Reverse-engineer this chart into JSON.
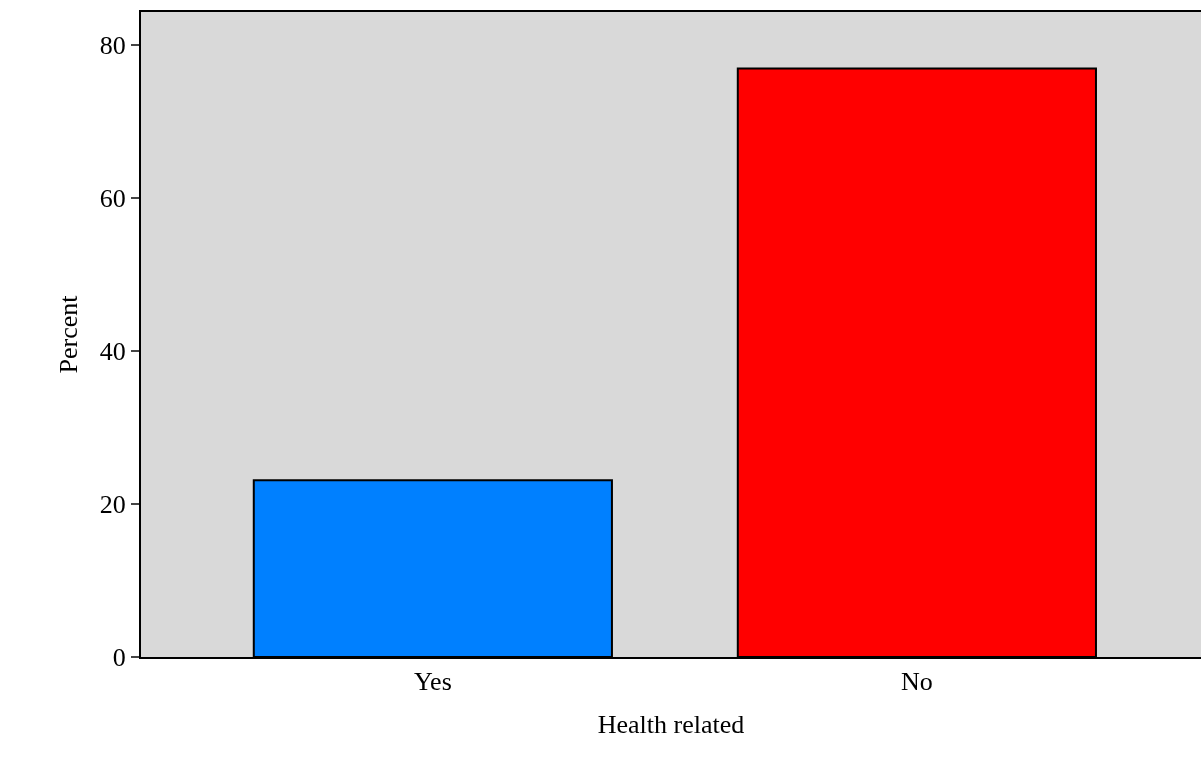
{
  "chart_data": {
    "type": "bar",
    "xlabel": "Health related",
    "ylabel": "Percent",
    "categories": [
      "Yes",
      "No"
    ],
    "values": [
      23.1,
      76.9
    ],
    "colors": [
      "#0080ff",
      "#ff0000"
    ],
    "ylim": [
      0,
      84.3
    ],
    "yticks": [
      0,
      20,
      40,
      60,
      80
    ],
    "grid": false
  }
}
